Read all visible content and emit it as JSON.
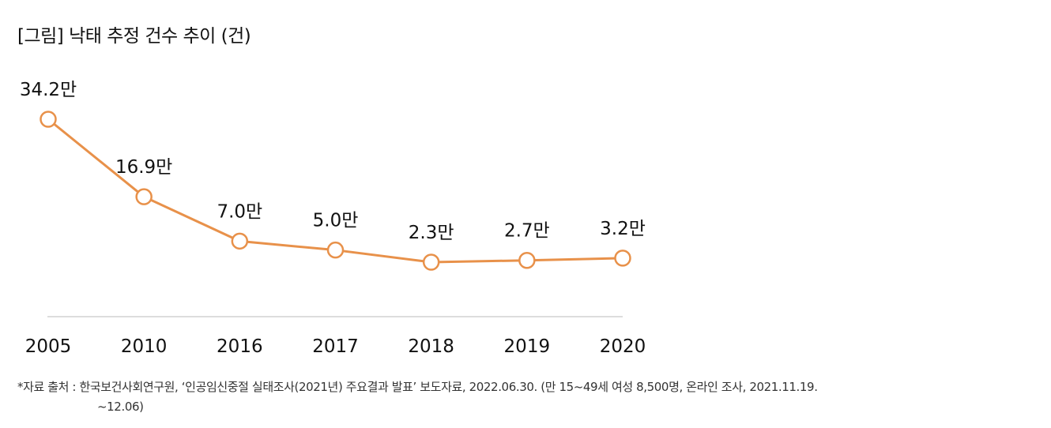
{
  "chart_data": {
    "type": "line",
    "title": "[그림] 낙태 추정 건수 추이 (건)",
    "categories": [
      "2005",
      "2010",
      "2016",
      "2017",
      "2018",
      "2019",
      "2020"
    ],
    "values": [
      34.2,
      16.9,
      7.0,
      5.0,
      2.3,
      2.7,
      3.2
    ],
    "data_labels": [
      "34.2만",
      "16.9만",
      "7.0만",
      "5.0만",
      "2.3만",
      "2.7만",
      "3.2만"
    ],
    "unit": "만",
    "xlabel": "",
    "ylabel": "",
    "ylim": [
      0,
      40
    ],
    "grid": false,
    "legend": "none",
    "line_color": "#e8914a",
    "marker_fill": "#ffffff"
  },
  "source": {
    "line1": "*자료 출처 : 한국보건사회연구원, ‘인공임신중절 실태조사(2021년) 주요결과 발표’ 보도자료, 2022.06.30. (만 15~49세 여성 8,500명, 온라인 조사, 2021.11.19.",
    "line2": "~12.06)"
  }
}
